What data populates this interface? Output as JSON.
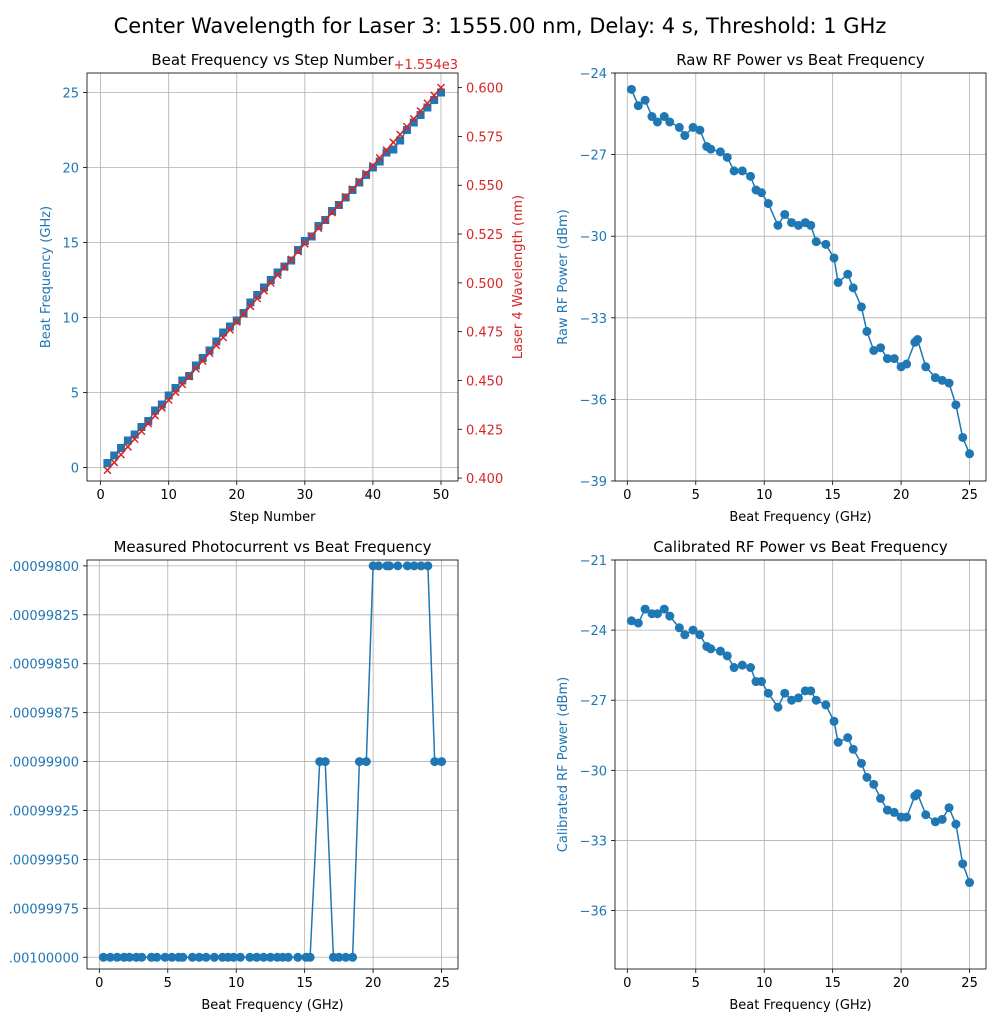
{
  "figure": {
    "suptitle": "Center Wavelength for Laser 3: 1555.00 nm, Delay: 4 s, Threshold: 1 GHz"
  },
  "colors": {
    "series": "#1f77b4",
    "secondary": "#d62728",
    "grid": "#b0b0b0",
    "axis": "#000000"
  },
  "chart_data": [
    {
      "type": "line",
      "title": "Beat Frequency vs Step Number",
      "xlabel": "Step Number",
      "ylabel": "Beat Frequency (GHz)",
      "y2label": "Laser 4 Wavelength (nm)",
      "y2_offset_label": "+1.554e3",
      "xlim": [
        -2,
        52.5
      ],
      "ylim": [
        -0.9,
        26.3
      ],
      "y2lim": [
        0.3985,
        0.6075
      ],
      "grid": true,
      "x": [
        1,
        2,
        3,
        4,
        5,
        6,
        7,
        8,
        9,
        10,
        11,
        12,
        13,
        14,
        15,
        16,
        17,
        18,
        19,
        20,
        21,
        22,
        23,
        24,
        25,
        26,
        27,
        28,
        29,
        30,
        31,
        32,
        33,
        34,
        35,
        36,
        37,
        38,
        39,
        40,
        41,
        42,
        43,
        44,
        45,
        46,
        47,
        48,
        49,
        50
      ],
      "xticks": [
        0,
        10,
        20,
        30,
        40,
        50
      ],
      "yticks": [
        0,
        5,
        10,
        15,
        20,
        25
      ],
      "y2ticks": [
        "0.400",
        "0.425",
        "0.450",
        "0.475",
        "0.500",
        "0.525",
        "0.550",
        "0.575",
        "0.600"
      ],
      "series": [
        {
          "axis": "left",
          "color": "#1f77b4",
          "marker": "square",
          "values": [
            0.3,
            0.8,
            1.3,
            1.8,
            2.2,
            2.7,
            3.1,
            3.8,
            4.2,
            4.8,
            5.3,
            5.8,
            6.1,
            6.8,
            7.3,
            7.8,
            8.4,
            9.0,
            9.4,
            9.8,
            10.3,
            11.0,
            11.5,
            12.0,
            12.5,
            13.0,
            13.4,
            13.8,
            14.5,
            15.1,
            15.4,
            16.1,
            16.5,
            17.1,
            17.5,
            18.0,
            18.5,
            19.0,
            19.5,
            20.0,
            20.4,
            21.0,
            21.2,
            21.8,
            22.5,
            23.0,
            23.5,
            24.0,
            24.5,
            25.0
          ]
        },
        {
          "axis": "right",
          "color": "#d62728",
          "marker": "x",
          "values": [
            0.404,
            0.408,
            0.412,
            0.416,
            0.42,
            0.424,
            0.428,
            0.432,
            0.436,
            0.44,
            0.444,
            0.448,
            0.452,
            0.456,
            0.46,
            0.464,
            0.468,
            0.472,
            0.476,
            0.48,
            0.484,
            0.488,
            0.492,
            0.496,
            0.5,
            0.504,
            0.508,
            0.512,
            0.516,
            0.52,
            0.524,
            0.528,
            0.532,
            0.536,
            0.54,
            0.544,
            0.548,
            0.552,
            0.556,
            0.56,
            0.564,
            0.568,
            0.572,
            0.576,
            0.58,
            0.584,
            0.588,
            0.592,
            0.596,
            0.6
          ]
        }
      ]
    },
    {
      "type": "line",
      "title": "Raw RF Power vs Beat Frequency",
      "xlabel": "Beat Frequency (GHz)",
      "ylabel": "Raw RF Power (dBm)",
      "xlim": [
        -0.9,
        26.2
      ],
      "ylim": [
        -39,
        -24
      ],
      "grid": true,
      "xticks": [
        0,
        5,
        10,
        15,
        20,
        25
      ],
      "yticks": [
        -24,
        -27,
        -30,
        -33,
        -36,
        -39
      ],
      "x": [
        0.3,
        0.8,
        1.3,
        1.8,
        2.2,
        2.7,
        3.1,
        3.8,
        4.2,
        4.8,
        5.3,
        5.8,
        6.1,
        6.8,
        7.3,
        7.8,
        8.4,
        9.0,
        9.4,
        9.8,
        10.3,
        11.0,
        11.5,
        12.0,
        12.5,
        13.0,
        13.4,
        13.8,
        14.5,
        15.1,
        15.4,
        16.1,
        16.5,
        17.1,
        17.5,
        18.0,
        18.5,
        19.0,
        19.5,
        20.0,
        20.4,
        21.0,
        21.2,
        21.8,
        22.5,
        23.0,
        23.5,
        24.0,
        24.5,
        25.0
      ],
      "series": [
        {
          "color": "#1f77b4",
          "values": [
            -24.6,
            -25.2,
            -25.0,
            -25.6,
            -25.8,
            -25.6,
            -25.8,
            -26.0,
            -26.3,
            -26.0,
            -26.1,
            -26.7,
            -26.8,
            -26.9,
            -27.1,
            -27.6,
            -27.6,
            -27.8,
            -28.3,
            -28.4,
            -28.8,
            -29.6,
            -29.2,
            -29.5,
            -29.6,
            -29.5,
            -29.6,
            -30.2,
            -30.3,
            -30.8,
            -31.7,
            -31.4,
            -31.9,
            -32.6,
            -33.5,
            -34.2,
            -34.1,
            -34.5,
            -34.5,
            -34.8,
            -34.7,
            -33.9,
            -33.8,
            -34.8,
            -35.2,
            -35.3,
            -35.4,
            -36.2,
            -37.4,
            -38.0
          ]
        }
      ]
    },
    {
      "type": "line",
      "title": "Measured Photocurrent vs Beat Frequency",
      "xlabel": "Beat Frequency (GHz)",
      "ylabel": "",
      "xlim": [
        -0.9,
        26.2
      ],
      "ylim": [
        -0.00100006,
        -0.00099797
      ],
      "grid": true,
      "xticks": [
        0,
        5,
        10,
        15,
        20,
        25
      ],
      "ytick_values": [
        -0.000998,
        -0.00099825,
        -0.0009985,
        -0.00099875,
        -0.000999,
        -0.00099925,
        -0.0009995,
        -0.00099975,
        -0.001
      ],
      "ytick_labels": [
        ".00099800",
        ".00099825",
        ".00099850",
        ".00099875",
        ".00099900",
        ".00099925",
        ".00099950",
        ".00099975",
        ".00100000"
      ],
      "x": [
        0.3,
        0.8,
        1.3,
        1.8,
        2.2,
        2.7,
        3.1,
        3.8,
        4.2,
        4.8,
        5.3,
        5.8,
        6.1,
        6.8,
        7.3,
        7.8,
        8.4,
        9.0,
        9.4,
        9.8,
        10.3,
        11.0,
        11.5,
        12.0,
        12.5,
        13.0,
        13.4,
        13.8,
        14.5,
        15.1,
        15.4,
        16.1,
        16.5,
        17.1,
        17.5,
        18.0,
        18.5,
        19.0,
        19.5,
        20.0,
        20.4,
        21.0,
        21.2,
        21.8,
        22.5,
        23.0,
        23.5,
        24.0,
        24.5,
        25.0
      ],
      "series": [
        {
          "color": "#1f77b4",
          "values": [
            -0.001,
            -0.001,
            -0.001,
            -0.001,
            -0.001,
            -0.001,
            -0.001,
            -0.001,
            -0.001,
            -0.001,
            -0.001,
            -0.001,
            -0.001,
            -0.001,
            -0.001,
            -0.001,
            -0.001,
            -0.001,
            -0.001,
            -0.001,
            -0.001,
            -0.001,
            -0.001,
            -0.001,
            -0.001,
            -0.001,
            -0.001,
            -0.001,
            -0.001,
            -0.001,
            -0.001,
            -0.000999,
            -0.000999,
            -0.001,
            -0.001,
            -0.001,
            -0.001,
            -0.000999,
            -0.000999,
            -0.000998,
            -0.000998,
            -0.000998,
            -0.000998,
            -0.000998,
            -0.000998,
            -0.000998,
            -0.000998,
            -0.000998,
            -0.000999,
            -0.000999
          ]
        }
      ]
    },
    {
      "type": "line",
      "title": "Calibrated RF Power vs Beat Frequency",
      "xlabel": "Beat Frequency (GHz)",
      "ylabel": "Calibrated RF Power (dBm)",
      "xlim": [
        -0.9,
        26.2
      ],
      "ylim": [
        -38.5,
        -21
      ],
      "grid": true,
      "xticks": [
        0,
        5,
        10,
        15,
        20,
        25
      ],
      "yticks": [
        -21,
        -24,
        -27,
        -30,
        -33,
        -36
      ],
      "x": [
        0.3,
        0.8,
        1.3,
        1.8,
        2.2,
        2.7,
        3.1,
        3.8,
        4.2,
        4.8,
        5.3,
        5.8,
        6.1,
        6.8,
        7.3,
        7.8,
        8.4,
        9.0,
        9.4,
        9.8,
        10.3,
        11.0,
        11.5,
        12.0,
        12.5,
        13.0,
        13.4,
        13.8,
        14.5,
        15.1,
        15.4,
        16.1,
        16.5,
        17.1,
        17.5,
        18.0,
        18.5,
        19.0,
        19.5,
        20.0,
        20.4,
        21.0,
        21.2,
        21.8,
        22.5,
        23.0,
        23.5,
        24.0,
        24.5,
        25.0
      ],
      "series": [
        {
          "color": "#1f77b4",
          "values": [
            -23.6,
            -23.7,
            -23.1,
            -23.3,
            -23.3,
            -23.1,
            -23.4,
            -23.9,
            -24.2,
            -24.0,
            -24.2,
            -24.7,
            -24.8,
            -24.9,
            -25.1,
            -25.6,
            -25.5,
            -25.6,
            -26.2,
            -26.2,
            -26.7,
            -27.3,
            -26.7,
            -27.0,
            -26.9,
            -26.6,
            -26.6,
            -27.0,
            -27.2,
            -27.9,
            -28.8,
            -28.6,
            -29.1,
            -29.7,
            -30.3,
            -30.6,
            -31.2,
            -31.7,
            -31.8,
            -32.0,
            -32.0,
            -31.1,
            -31.0,
            -31.9,
            -32.2,
            -32.1,
            -31.6,
            -32.3,
            -34.0,
            -34.8
          ]
        }
      ]
    }
  ]
}
